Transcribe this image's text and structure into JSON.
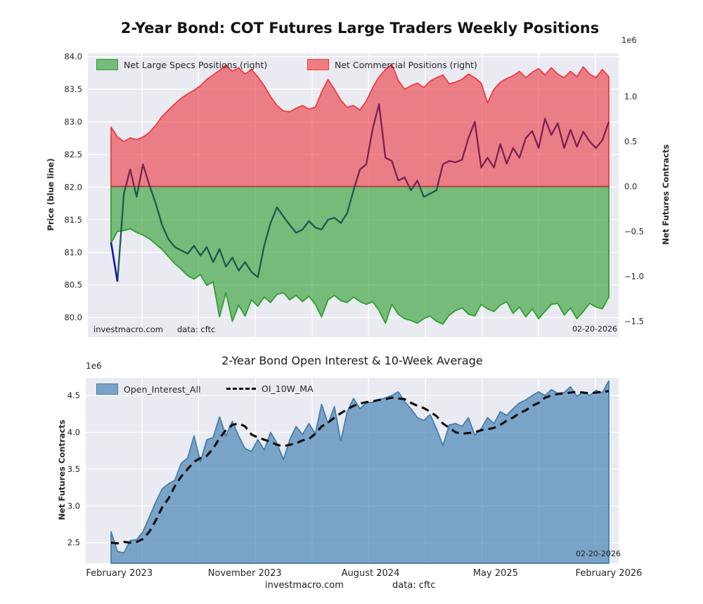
{
  "style": {
    "figure_background": "#ffffff",
    "axes_background": "#eaeaf2",
    "grid_color": "#ffffff",
    "text_color": "#262626",
    "zero_line_color": "#b13c3c"
  },
  "x_ticks": {
    "labels": [
      "February 2023",
      "November 2023",
      "August 2024",
      "May 2025",
      "February 2026"
    ],
    "weeks": [
      2.6,
      41.9,
      81.3,
      120.5,
      156
    ]
  },
  "x_grid_weeks": [
    9.7,
    27.4,
    45.2,
    63.0,
    80.7,
    98.5,
    116.3,
    134.0,
    151.8
  ],
  "chart_data": [
    {
      "type": "area",
      "title": "2-Year Bond: COT Futures Large Traders Weekly Positions",
      "ylabel_left": "Price (blue line)",
      "ylabel_right": "Net Futures Contracts",
      "offset_text": "1e6",
      "watermark": "investmacro.com",
      "data_source": "data: cftc",
      "date_annotation": "02-20-2026",
      "ylim_left": [
        79.7,
        84.05
      ],
      "ylim_right": [
        -1.675,
        1.48
      ],
      "left_ticks": {
        "labels": [
          "84.0",
          "83.5",
          "83.0",
          "82.5",
          "82.0",
          "81.5",
          "81.0",
          "80.5",
          "80.0"
        ],
        "values": [
          84.0,
          83.5,
          83.0,
          82.5,
          82.0,
          81.5,
          81.0,
          80.5,
          80.0
        ]
      },
      "right_ticks": {
        "labels": [
          "1.0",
          "0.5",
          "0.0",
          "−0.5",
          "−1.0",
          "−1.5"
        ],
        "values": [
          1.0,
          0.5,
          0.0,
          -0.5,
          -1.0,
          -1.5
        ]
      },
      "x_weeks": [
        0,
        2,
        4,
        6,
        8,
        10,
        12,
        14,
        16,
        18,
        20,
        22,
        24,
        26,
        28,
        30,
        32,
        34,
        36,
        38,
        40,
        42,
        44,
        46,
        48,
        50,
        52,
        54,
        56,
        58,
        60,
        62,
        64,
        66,
        68,
        70,
        72,
        74,
        76,
        78,
        80,
        82,
        84,
        86,
        88,
        90,
        92,
        94,
        96,
        98,
        100,
        102,
        104,
        106,
        108,
        110,
        112,
        114,
        116,
        118,
        120,
        122,
        124,
        126,
        128,
        130,
        132,
        134,
        136,
        138,
        140,
        142,
        144,
        146,
        148,
        150,
        152,
        154,
        156
      ],
      "series": [
        {
          "name": "Net Large Specs Positions (right)",
          "type": "area",
          "axis": "right",
          "fill": "#2f9e2f",
          "fill_opacity": 0.62,
          "edge": "#2e9e2e",
          "values": [
            -0.63,
            -0.5,
            -0.49,
            -0.47,
            -0.51,
            -0.54,
            -0.58,
            -0.64,
            -0.7,
            -0.78,
            -0.86,
            -0.92,
            -0.99,
            -1.03,
            -0.98,
            -1.1,
            -1.06,
            -1.45,
            -1.18,
            -1.5,
            -1.32,
            -1.44,
            -1.26,
            -1.33,
            -1.23,
            -1.29,
            -1.2,
            -1.18,
            -1.26,
            -1.21,
            -1.28,
            -1.22,
            -1.31,
            -1.45,
            -1.26,
            -1.21,
            -1.27,
            -1.29,
            -1.23,
            -1.28,
            -1.31,
            -1.28,
            -1.38,
            -1.52,
            -1.31,
            -1.42,
            -1.47,
            -1.49,
            -1.52,
            -1.47,
            -1.44,
            -1.5,
            -1.53,
            -1.43,
            -1.38,
            -1.35,
            -1.42,
            -1.44,
            -1.31,
            -1.36,
            -1.39,
            -1.32,
            -1.28,
            -1.41,
            -1.34,
            -1.45,
            -1.36,
            -1.47,
            -1.39,
            -1.31,
            -1.3,
            -1.43,
            -1.35,
            -1.47,
            -1.39,
            -1.3,
            -1.34,
            -1.36,
            -1.23
          ]
        },
        {
          "name": "Net Commercial Positions (right)",
          "type": "area",
          "axis": "right",
          "fill": "#e83038",
          "fill_opacity": 0.58,
          "edge": "#f23b3b",
          "values": [
            0.66,
            0.55,
            0.5,
            0.54,
            0.52,
            0.55,
            0.6,
            0.68,
            0.78,
            0.85,
            0.92,
            0.98,
            1.03,
            1.07,
            1.12,
            1.19,
            1.24,
            1.29,
            1.35,
            1.28,
            1.32,
            1.25,
            1.3,
            1.22,
            1.12,
            1.0,
            0.9,
            0.84,
            0.83,
            0.87,
            0.9,
            0.86,
            0.88,
            1.05,
            1.19,
            1.08,
            0.96,
            0.88,
            0.9,
            0.85,
            0.95,
            1.1,
            1.22,
            1.3,
            1.36,
            1.18,
            1.08,
            1.12,
            1.15,
            1.1,
            1.17,
            1.21,
            1.24,
            1.14,
            1.16,
            1.19,
            1.25,
            1.21,
            1.15,
            0.93,
            1.08,
            1.16,
            1.2,
            1.23,
            1.28,
            1.21,
            1.27,
            1.31,
            1.24,
            1.32,
            1.25,
            1.21,
            1.28,
            1.22,
            1.33,
            1.25,
            1.21,
            1.3,
            1.22
          ]
        },
        {
          "name": "Price",
          "type": "line",
          "axis": "left",
          "color_over_commercials": "#7a2050",
          "color_over_specs": "#1d5752",
          "color_first_segment": "#1313ad",
          "values": [
            81.15,
            80.55,
            81.9,
            82.27,
            81.85,
            82.35,
            82.03,
            81.75,
            81.42,
            81.2,
            81.08,
            81.03,
            80.98,
            81.1,
            80.95,
            81.08,
            80.85,
            81.05,
            80.78,
            80.92,
            80.72,
            80.85,
            80.7,
            80.62,
            81.1,
            81.45,
            81.69,
            81.55,
            81.42,
            81.3,
            81.35,
            81.48,
            81.38,
            81.35,
            81.5,
            81.53,
            81.45,
            81.6,
            81.95,
            82.27,
            82.35,
            82.9,
            83.27,
            82.45,
            82.4,
            82.1,
            82.15,
            81.95,
            82.1,
            81.85,
            81.9,
            81.95,
            82.35,
            82.4,
            82.38,
            82.42,
            82.75,
            83.0,
            82.3,
            82.45,
            82.3,
            82.66,
            82.36,
            82.6,
            82.45,
            82.75,
            82.86,
            82.6,
            83.05,
            82.8,
            82.98,
            82.6,
            82.88,
            82.62,
            82.85,
            82.7,
            82.6,
            82.72,
            83.0
          ]
        }
      ]
    },
    {
      "type": "area",
      "title": "2-Year Bond Open Interest & 10-Week Average",
      "ylabel_left": "Net Futures Contracts",
      "offset_text": "1e6",
      "watermark": "investmacro.com",
      "data_source": "data: cftc",
      "date_annotation": "02-20-2026",
      "ylim": [
        2.22,
        4.74
      ],
      "left_ticks": {
        "labels": [
          "4.5",
          "4.0",
          "3.5",
          "3.0",
          "2.5"
        ],
        "values": [
          4.5,
          4.0,
          3.5,
          3.0,
          2.5
        ]
      },
      "x_weeks": [
        0,
        2,
        4,
        6,
        8,
        10,
        12,
        14,
        16,
        18,
        20,
        22,
        24,
        26,
        28,
        30,
        32,
        34,
        36,
        38,
        40,
        42,
        44,
        46,
        48,
        50,
        52,
        54,
        56,
        58,
        60,
        62,
        64,
        66,
        68,
        70,
        72,
        74,
        76,
        78,
        80,
        82,
        84,
        86,
        88,
        90,
        92,
        94,
        96,
        98,
        100,
        102,
        104,
        106,
        108,
        110,
        112,
        114,
        116,
        118,
        120,
        122,
        124,
        126,
        128,
        130,
        132,
        134,
        136,
        138,
        140,
        142,
        144,
        146,
        148,
        150,
        152,
        154,
        156
      ],
      "series": [
        {
          "name": "Open_Interest_All",
          "type": "area",
          "fill": "#4682b4",
          "fill_opacity": 0.68,
          "edge": "#3f7ca8",
          "values": [
            2.65,
            2.38,
            2.36,
            2.53,
            2.54,
            2.65,
            2.85,
            3.05,
            3.23,
            3.3,
            3.35,
            3.58,
            3.65,
            3.95,
            3.6,
            3.9,
            3.93,
            4.21,
            3.95,
            4.15,
            3.95,
            3.78,
            3.74,
            3.9,
            3.76,
            4.0,
            3.85,
            3.63,
            3.9,
            4.08,
            3.97,
            4.12,
            3.98,
            4.38,
            4.12,
            4.35,
            3.88,
            4.28,
            4.46,
            4.32,
            4.4,
            4.41,
            4.44,
            4.47,
            4.5,
            4.55,
            4.42,
            4.32,
            4.2,
            4.16,
            4.24,
            4.05,
            3.82,
            4.1,
            4.12,
            4.08,
            4.2,
            3.96,
            4.05,
            4.2,
            4.12,
            4.28,
            4.23,
            4.32,
            4.4,
            4.44,
            4.5,
            4.55,
            4.5,
            4.58,
            4.53,
            4.54,
            4.62,
            4.49,
            4.55,
            4.5,
            4.57,
            4.54,
            4.7
          ]
        },
        {
          "name": "OI_10W_MA",
          "type": "line",
          "style": "dashed",
          "color": "#0b0b0b",
          "values": [
            2.5,
            2.49,
            2.51,
            2.5,
            2.51,
            2.55,
            2.65,
            2.8,
            2.98,
            3.1,
            3.27,
            3.4,
            3.5,
            3.6,
            3.65,
            3.68,
            3.78,
            3.92,
            4.03,
            4.1,
            4.12,
            4.08,
            3.97,
            3.93,
            3.9,
            3.87,
            3.83,
            3.81,
            3.83,
            3.85,
            3.89,
            3.91,
            3.98,
            4.08,
            4.13,
            4.2,
            4.26,
            4.31,
            4.36,
            4.39,
            4.41,
            4.42,
            4.44,
            4.45,
            4.47,
            4.46,
            4.45,
            4.4,
            4.36,
            4.33,
            4.28,
            4.22,
            4.12,
            4.06,
            4.0,
            3.98,
            3.99,
            4.0,
            4.03,
            4.04,
            4.06,
            4.1,
            4.16,
            4.2,
            4.26,
            4.3,
            4.36,
            4.4,
            4.47,
            4.5,
            4.52,
            4.53,
            4.54,
            4.55,
            4.54,
            4.53,
            4.54,
            4.55,
            4.56
          ]
        }
      ]
    }
  ]
}
